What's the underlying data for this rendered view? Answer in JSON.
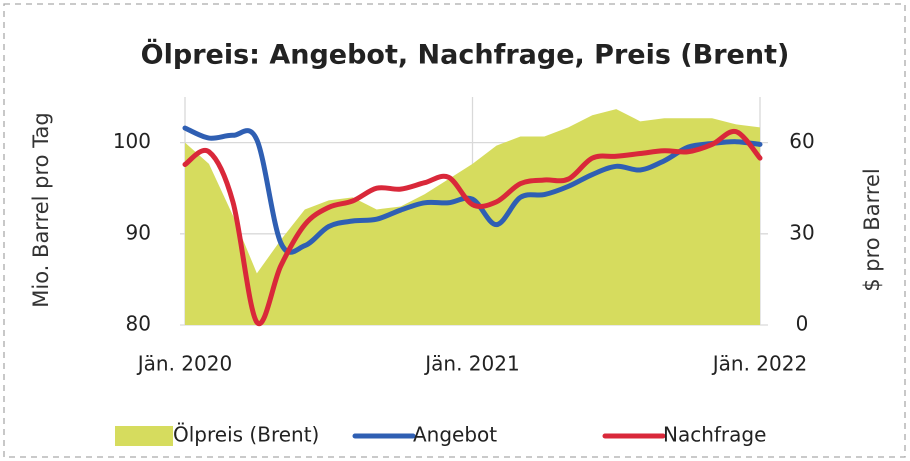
{
  "chart_data": {
    "type": "line",
    "title": "Ölpreis: Angebot, Nachfrage, Preis (Brent)",
    "y_label": "Mio. Barrel pro Tag",
    "y2_label": "$ pro Barrel",
    "categories": [
      "Jän. 2020",
      null,
      null,
      null,
      null,
      null,
      null,
      null,
      null,
      null,
      null,
      null,
      "Jän. 2021",
      null,
      null,
      null,
      null,
      null,
      null,
      null,
      null,
      null,
      null,
      null,
      "Jän. 2022"
    ],
    "ylim": [
      80,
      105
    ],
    "yticks": [
      80,
      90,
      100
    ],
    "y2lim": [
      0,
      75
    ],
    "y2ticks": [
      0,
      30,
      60
    ],
    "grid": true,
    "legend": "bottom",
    "series": [
      {
        "name": "Ölpreis (Brent)",
        "type": "area",
        "axis": "y2",
        "color": "#d6dc5e",
        "values": [
          60,
          53,
          36,
          17,
          28,
          38,
          41,
          42,
          38,
          39,
          43,
          48,
          53,
          59,
          62,
          62,
          65,
          69,
          71,
          67,
          68,
          68,
          68,
          66,
          65
        ]
      },
      {
        "name": "Angebot",
        "type": "line",
        "color": "#2f5fb3",
        "values": [
          101.6,
          100.5,
          100.8,
          100.3,
          89,
          88.7,
          90.8,
          91.4,
          91.6,
          92.6,
          93.4,
          93.4,
          93.8,
          91,
          94,
          94.3,
          95.2,
          96.5,
          97.4,
          97,
          98,
          99.5,
          99.9,
          100.1,
          99.8
        ]
      },
      {
        "name": "Nachfrage",
        "type": "line",
        "color": "#d9283a",
        "values": [
          97.6,
          99,
          93.5,
          80.3,
          86.5,
          91,
          92.9,
          93.6,
          95,
          94.9,
          95.6,
          96.2,
          93.2,
          93.5,
          95.5,
          95.9,
          96,
          98.3,
          98.5,
          98.8,
          99.1,
          99,
          99.8,
          101.2,
          98.3
        ]
      }
    ]
  }
}
